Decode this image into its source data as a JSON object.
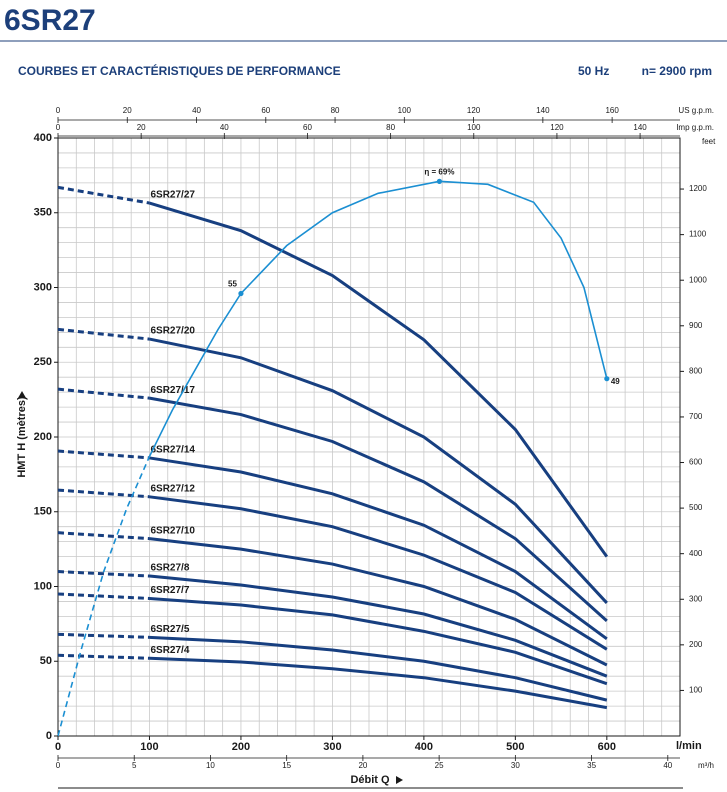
{
  "chart_data": {
    "type": "line",
    "title": "6SR27",
    "subtitle": "COURBES ET CARACTÉRISTIQUES DE PERFORMANCE",
    "frequency": "50 Hz",
    "speed": "n= 2900 rpm",
    "ylabel": "HMT H (mètres)",
    "xlabel": "Débit Q",
    "xunit": "l/min",
    "y2unit": "feet",
    "xlim": [
      0,
      680
    ],
    "xticks": [
      0,
      100,
      200,
      300,
      400,
      500,
      600
    ],
    "ylim": [
      0,
      400
    ],
    "yticks": [
      0,
      50,
      100,
      150,
      200,
      250,
      300,
      350,
      400
    ],
    "y2lim": [
      0,
      1312
    ],
    "y2ticks": [
      100,
      200,
      300,
      400,
      500,
      600,
      700,
      800,
      900,
      1000,
      1100,
      1200
    ],
    "x_minor_grid": [
      0,
      20,
      40,
      60,
      80,
      100,
      120,
      140,
      160,
      180,
      200,
      220,
      240,
      260,
      280,
      300,
      320,
      340,
      360,
      380,
      400,
      420,
      440,
      460,
      480,
      500,
      520,
      540,
      560,
      580,
      600,
      620,
      640,
      660,
      680
    ],
    "y_minor_grid": [
      0,
      10,
      20,
      30,
      40,
      50,
      60,
      70,
      80,
      90,
      100,
      110,
      120,
      130,
      140,
      150,
      160,
      170,
      180,
      190,
      200,
      210,
      220,
      230,
      240,
      250,
      260,
      270,
      280,
      290,
      300,
      310,
      320,
      330,
      340,
      350,
      360,
      370,
      380,
      390,
      400
    ],
    "extra_x_axes": [
      {
        "unit": "m³/h",
        "position": "bottom",
        "xlim": [
          0,
          40.8
        ],
        "xticks": [
          0,
          5,
          10,
          15,
          20,
          25,
          30,
          35,
          40
        ]
      },
      {
        "unit": "US g.p.m.",
        "position": "top",
        "xlim": [
          0,
          179.6
        ],
        "xticks": [
          0,
          20,
          40,
          60,
          80,
          100,
          120,
          140,
          160
        ]
      },
      {
        "unit": "Imp g.p.m.",
        "position": "top",
        "xlim": [
          0,
          149.6
        ],
        "xticks": [
          0,
          20,
          40,
          60,
          80,
          100,
          120,
          140
        ]
      }
    ],
    "grid": true,
    "dashed_below_x": 100,
    "x": [
      0,
      100,
      200,
      300,
      400,
      500,
      600
    ],
    "series": [
      {
        "name": "6SR27/27",
        "color": "#173f80",
        "values": [
          367,
          356.5,
          338,
          308,
          265,
          205,
          120
        ]
      },
      {
        "name": "6SR27/20",
        "color": "#173f80",
        "values": [
          272,
          265.5,
          253,
          231,
          200,
          155,
          89
        ]
      },
      {
        "name": "6SR27/17",
        "color": "#173f80",
        "values": [
          232,
          226,
          215,
          197,
          170,
          132,
          77
        ]
      },
      {
        "name": "6SR27/14",
        "color": "#173f80",
        "values": [
          190.6,
          186,
          176.6,
          162,
          141,
          110,
          65
        ]
      },
      {
        "name": "6SR27/12",
        "color": "#173f80",
        "values": [
          164.5,
          160,
          152,
          140,
          121,
          96,
          58
        ]
      },
      {
        "name": "6SR27/10",
        "color": "#173f80",
        "values": [
          136,
          132,
          125,
          115,
          100,
          78,
          47.5
        ]
      },
      {
        "name": "6SR27/8",
        "color": "#173f80",
        "values": [
          110,
          107,
          101,
          93,
          81.6,
          64,
          40
        ]
      },
      {
        "name": "6SR27/7",
        "color": "#173f80",
        "values": [
          95,
          92,
          87.6,
          81,
          70,
          56,
          35
        ]
      },
      {
        "name": "6SR27/5",
        "color": "#173f80",
        "values": [
          68,
          66,
          63,
          57.5,
          50,
          39,
          24
        ]
      },
      {
        "name": "6SR27/4",
        "color": "#173f80",
        "values": [
          54,
          52,
          49.5,
          45,
          39,
          30,
          19
        ]
      }
    ],
    "efficiency": {
      "color": "#1b8fd2",
      "x": [
        0,
        25,
        50,
        75,
        100,
        125,
        150,
        175,
        200,
        250,
        300,
        350,
        417,
        470,
        520,
        550,
        575,
        600
      ],
      "values": [
        0,
        57,
        110,
        152,
        187,
        218,
        245,
        272,
        296,
        328,
        350,
        363,
        371,
        369,
        357,
        333,
        300,
        239
      ],
      "annotations": [
        {
          "index": 8,
          "text": "55"
        },
        {
          "index": 12,
          "text": "η = 69%"
        },
        {
          "index": 17,
          "text": "49"
        }
      ]
    }
  }
}
